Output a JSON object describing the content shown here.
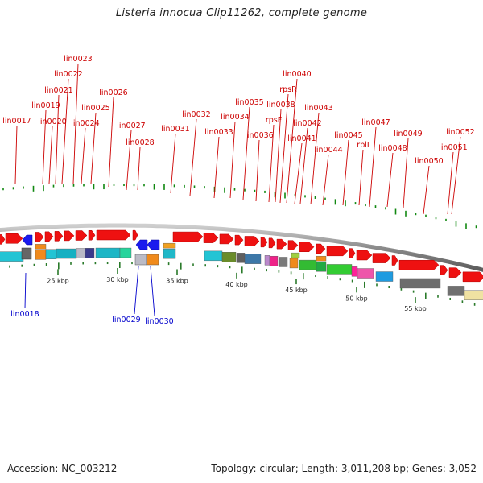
{
  "title": "Listeria innocua Clip11262, complete genome",
  "accession": "Accession: NC_003212",
  "summary": "Topology: circular; Length: 3,011,208 bp; Genes: 3,052",
  "colors": {
    "forward_label": "#cc0000",
    "reverse_label": "#0000cc",
    "cds_forward": "#ee1111",
    "cds_reverse": "#1a1aee",
    "gc_skew": "#118811",
    "backbone": "#999999"
  },
  "scale_ticks": [
    "25 kbp",
    "30 kbp",
    "35 kbp",
    "40 kbp",
    "45 kbp",
    "50 kbp",
    "55 kbp"
  ],
  "forward_genes": [
    "lin0017",
    "lin0019",
    "lin0020",
    "lin0021",
    "lin0022",
    "lin0023",
    "lin0024",
    "lin0025",
    "lin0026",
    "lin0027",
    "lin0028",
    "lin0031",
    "lin0032",
    "lin0033",
    "lin0034",
    "lin0035",
    "lin0036",
    "rpsF",
    "lin0038",
    "rpsR",
    "lin0040",
    "lin0041",
    "lin0042",
    "lin0043",
    "lin0044",
    "lin0045",
    "rplI",
    "lin0047",
    "lin0048",
    "lin0049",
    "lin0050",
    "lin0051",
    "lin0052"
  ],
  "reverse_genes": [
    "lin0018",
    "lin0029",
    "lin0030"
  ]
}
